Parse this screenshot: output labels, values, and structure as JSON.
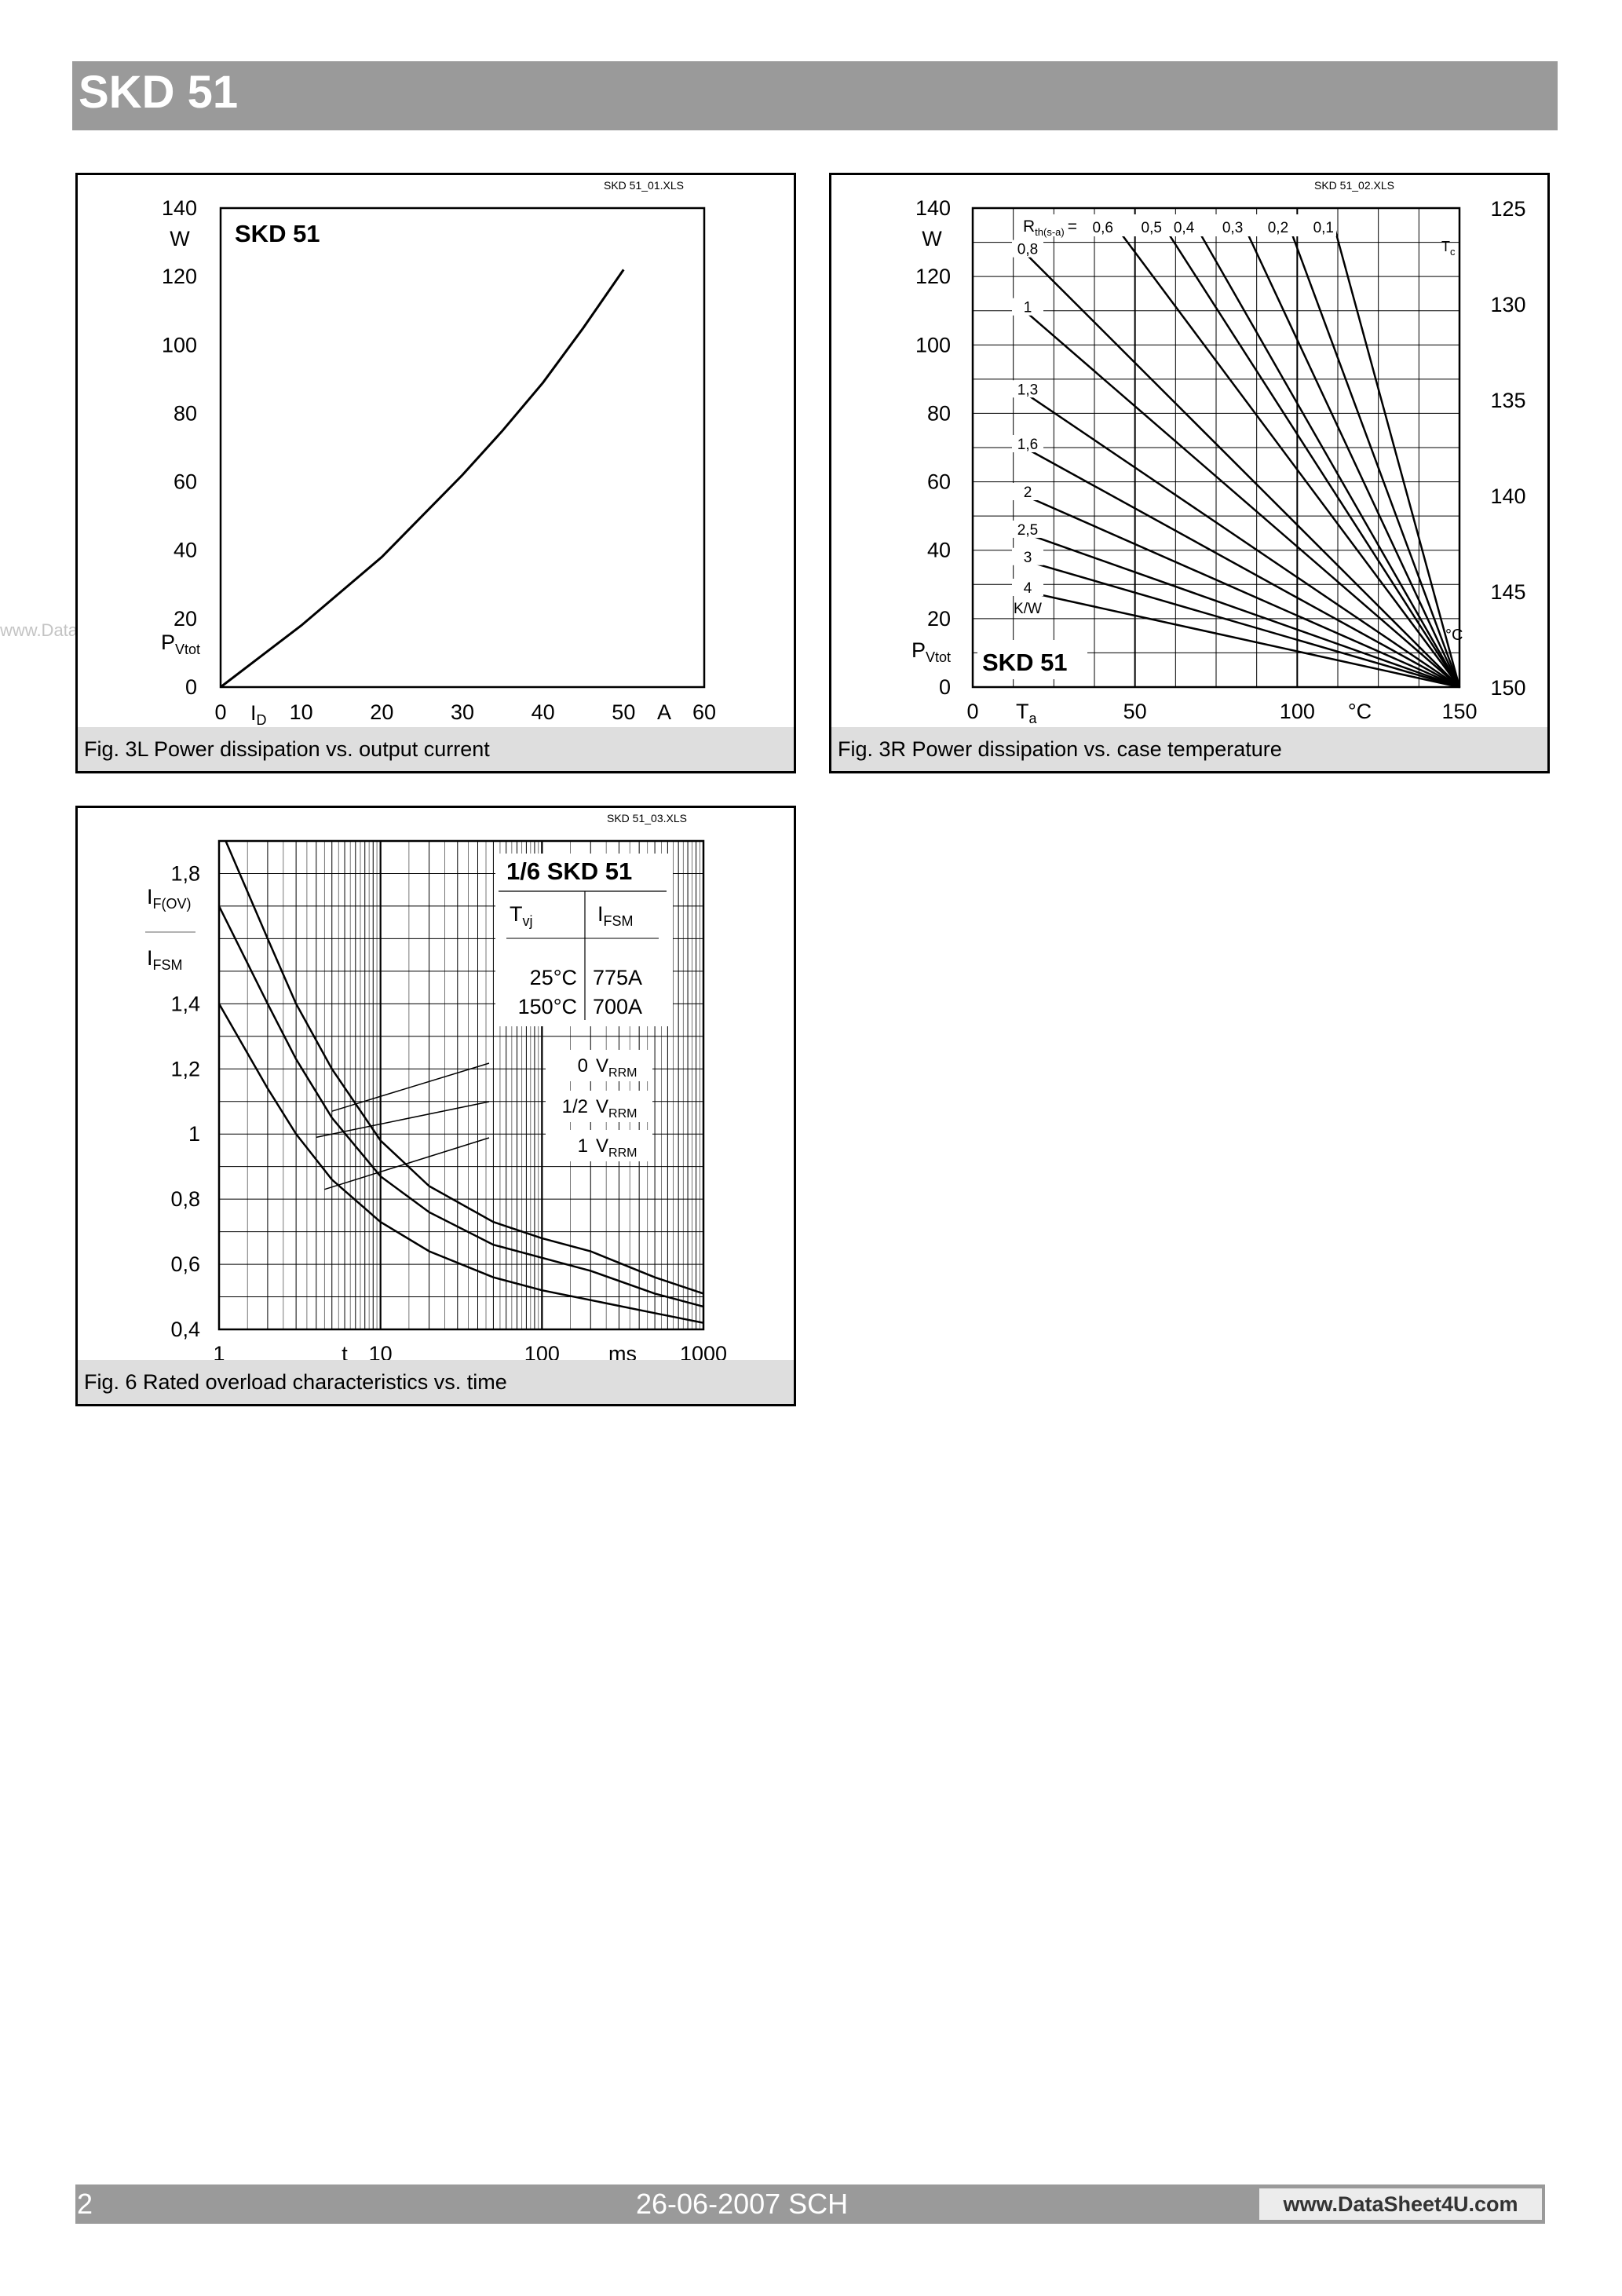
{
  "header": {
    "title": "SKD 51"
  },
  "watermark": "www.DataSheet4U.com",
  "footer": {
    "page": "2",
    "date_author": "26-06-2007  SCH",
    "url": "www.DataSheet4U.com"
  },
  "figures": [
    {
      "file_tag": "SKD 51_01.XLS",
      "caption": "Fig. 3L Power dissipation vs. output current",
      "legend_label": "SKD 51",
      "x_ticks": [
        "0",
        "10",
        "20",
        "30",
        "40",
        "50",
        "60"
      ],
      "y_ticks": [
        "0",
        "20",
        "40",
        "60",
        "80",
        "100",
        "120",
        "140"
      ],
      "y_unit": "W",
      "x_unit": "A",
      "y_name": "P",
      "y_sub": "Vtot",
      "x_name": "I",
      "x_sub": "D"
    },
    {
      "file_tag": "SKD 51_02.XLS",
      "caption": "Fig. 3R Power dissipation vs. case temperature",
      "legend_label": "SKD 51",
      "x_ticks": [
        "0",
        "50",
        "100",
        "150"
      ],
      "y_ticks": [
        "0",
        "20",
        "40",
        "60",
        "80",
        "100",
        "120",
        "140"
      ],
      "tc_ticks": [
        "125",
        "130",
        "135",
        "140",
        "145",
        "150"
      ],
      "y_unit": "W",
      "x_unit": "°C",
      "tc_unit": "°C",
      "y_name": "P",
      "y_sub": "Vtot",
      "x_name": "T",
      "x_sub": "a",
      "tc_name": "T",
      "tc_sub": "c",
      "rth_name": "R",
      "rth_sub": "th(s-a)",
      "rth_eq": "=",
      "rth_unit": "K/W",
      "rth_top": [
        "0,6",
        "0,5",
        "0,4",
        "0,3",
        "0,2",
        "0,1"
      ],
      "rth_left": [
        "0,8",
        "1",
        "1,3",
        "1,6",
        "2",
        "2,5",
        "3",
        "4"
      ]
    },
    {
      "file_tag": "SKD 51_03.XLS",
      "caption": "Fig. 6 Rated overload characteristics vs. time",
      "legend_label": "1/6 SKD 51",
      "x_ticks": [
        "1",
        "10",
        "100",
        "1000"
      ],
      "y_ticks": [
        "0,4",
        "0,6",
        "0,8",
        "1",
        "1,2",
        "1,4",
        "1,8"
      ],
      "x_unit": "ms",
      "x_name": "t",
      "y_num_name": "I",
      "y_num_sub": "F(OV)",
      "y_den_name": "I",
      "y_den_sub": "FSM",
      "table": {
        "col1_name": "T",
        "col1_sub": "vj",
        "col2_name": "I",
        "col2_sub": "FSM",
        "rows": [
          [
            "25°C",
            "775A"
          ],
          [
            "150°C",
            "700A"
          ]
        ]
      },
      "curve_labels": [
        {
          "prefix": "0",
          "name": "V",
          "sub": "RRM"
        },
        {
          "prefix": "1/2",
          "name": "V",
          "sub": "RRM"
        },
        {
          "prefix": "1",
          "name": "V",
          "sub": "RRM"
        }
      ]
    }
  ],
  "chart_data": [
    {
      "type": "line",
      "title": "Fig. 3L Power dissipation vs. output current",
      "xlabel": "I_D",
      "ylabel": "P_Vtot",
      "xlim": [
        0,
        60
      ],
      "ylim": [
        0,
        140
      ],
      "grid": true,
      "series": [
        {
          "name": "SKD 51",
          "x": [
            0,
            5,
            10,
            15,
            20,
            25,
            30,
            35,
            40,
            45,
            50
          ],
          "y": [
            0,
            9,
            18,
            28,
            38,
            50,
            62,
            75,
            89,
            105,
            122
          ]
        }
      ]
    },
    {
      "type": "line",
      "title": "Fig. 3R Power dissipation vs. case temperature",
      "xlabel": "T_a",
      "ylabel": "P_Vtot",
      "y2label": "T_c",
      "xlim": [
        0,
        150
      ],
      "ylim": [
        0,
        140
      ],
      "y2lim": [
        125,
        150
      ],
      "grid": true,
      "lines_converge_to": [
        150,
        0
      ],
      "series": [
        {
          "name": "0,1",
          "x": [
            111,
            150
          ],
          "y": [
            136,
            0
          ]
        },
        {
          "name": "0,2",
          "x": [
            97,
            150
          ],
          "y": [
            136,
            0
          ]
        },
        {
          "name": "0,3",
          "x": [
            83,
            150
          ],
          "y": [
            136,
            0
          ]
        },
        {
          "name": "0,4",
          "x": [
            68,
            150
          ],
          "y": [
            136,
            0
          ]
        },
        {
          "name": "0,5",
          "x": [
            58,
            150
          ],
          "y": [
            136,
            0
          ]
        },
        {
          "name": "0,6",
          "x": [
            43,
            150
          ],
          "y": [
            136,
            0
          ]
        },
        {
          "name": "0,8",
          "x": [
            16,
            150
          ],
          "y": [
            127,
            0
          ]
        },
        {
          "name": "1",
          "x": [
            16,
            150
          ],
          "y": [
            110,
            0
          ]
        },
        {
          "name": "1,3",
          "x": [
            16,
            150
          ],
          "y": [
            86,
            0
          ]
        },
        {
          "name": "1,6",
          "x": [
            16,
            150
          ],
          "y": [
            70,
            0
          ]
        },
        {
          "name": "2",
          "x": [
            16,
            150
          ],
          "y": [
            56,
            0
          ]
        },
        {
          "name": "2,5",
          "x": [
            16,
            150
          ],
          "y": [
            45,
            0
          ]
        },
        {
          "name": "3",
          "x": [
            16,
            150
          ],
          "y": [
            37,
            0
          ]
        },
        {
          "name": "4",
          "x": [
            16,
            150
          ],
          "y": [
            28,
            0
          ]
        }
      ]
    },
    {
      "type": "line",
      "title": "Fig. 6 Rated overload characteristics vs. time",
      "xlabel": "t",
      "ylabel": "I_F(OV) / I_FSM",
      "xscale": "log",
      "xlim": [
        1,
        1000
      ],
      "ylim": [
        0.4,
        1.9
      ],
      "grid": true,
      "series": [
        {
          "name": "0 V_RRM",
          "x": [
            1.1,
            2,
            3,
            5,
            10,
            20,
            50,
            100,
            200,
            500,
            1000
          ],
          "y": [
            1.9,
            1.6,
            1.4,
            1.2,
            0.98,
            0.84,
            0.73,
            0.68,
            0.64,
            0.56,
            0.51
          ]
        },
        {
          "name": "1/2 V_RRM",
          "x": [
            1,
            2,
            3,
            5,
            10,
            20,
            50,
            100,
            200,
            500,
            1000
          ],
          "y": [
            1.7,
            1.4,
            1.23,
            1.05,
            0.87,
            0.76,
            0.66,
            0.62,
            0.58,
            0.51,
            0.47
          ]
        },
        {
          "name": "1 V_RRM",
          "x": [
            1,
            2,
            3,
            5,
            10,
            20,
            50,
            100,
            200,
            500,
            1000
          ],
          "y": [
            1.4,
            1.14,
            1.0,
            0.86,
            0.73,
            0.64,
            0.56,
            0.52,
            0.49,
            0.45,
            0.42
          ]
        }
      ]
    }
  ]
}
